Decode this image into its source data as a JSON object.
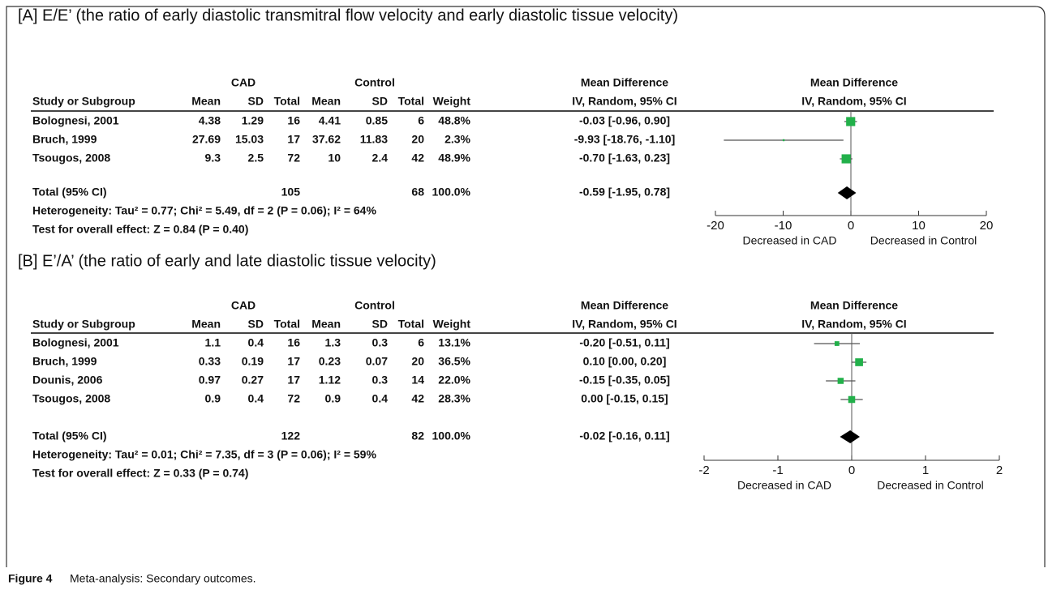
{
  "panels": [
    {
      "type": "forest",
      "title": "[A] E/E’ (the ratio of early diastolic transmitral flow velocity and early diastolic tissue velocity)",
      "group_headers": [
        "CAD",
        "Control",
        "Mean Difference",
        "Mean Difference"
      ],
      "columns": [
        "Study or Subgroup",
        "Mean",
        "SD",
        "Total",
        "Mean",
        "SD",
        "Total",
        "Weight",
        "IV, Random, 95% CI",
        "IV, Random, 95% CI"
      ],
      "studies": [
        {
          "name": "Bolognesi, 2001",
          "cad_mean": 4.38,
          "cad_sd": 1.29,
          "cad_total": 16,
          "ctrl_mean": 4.41,
          "ctrl_sd": 0.85,
          "ctrl_total": 6,
          "weight": 48.8,
          "weight_label": "48.8%",
          "md": -0.03,
          "lo": -0.96,
          "hi": 0.9,
          "ci_label": "-0.03 [-0.96, 0.90]"
        },
        {
          "name": "Bruch, 1999",
          "cad_mean": 27.69,
          "cad_sd": 15.03,
          "cad_total": 17,
          "ctrl_mean": 37.62,
          "ctrl_sd": 11.83,
          "ctrl_total": 20,
          "weight": 2.3,
          "weight_label": "2.3%",
          "md": -9.93,
          "lo": -18.76,
          "hi": -1.1,
          "ci_label": "-9.93 [-18.76, -1.10]"
        },
        {
          "name": "Tsougos, 2008",
          "cad_mean": 9.3,
          "cad_sd": 2.5,
          "cad_total": 72,
          "ctrl_mean": 10,
          "ctrl_sd": 2.4,
          "ctrl_total": 42,
          "weight": 48.9,
          "weight_label": "48.9%",
          "md": -0.7,
          "lo": -1.63,
          "hi": 0.23,
          "ci_label": "-0.70 [-1.63, 0.23]"
        }
      ],
      "total": {
        "name": "Total (95% CI)",
        "cad_total": 105,
        "ctrl_total": 68,
        "weight_label": "100.0%",
        "md": -0.59,
        "lo": -1.95,
        "hi": 0.78,
        "ci_label": "-0.59 [-1.95, 0.78]"
      },
      "heterogeneity": "Heterogeneity: Tau² = 0.77; Chi² = 5.49, df = 2 (P = 0.06); I² = 64%",
      "overall_effect": "Test for overall effect: Z = 0.84 (P = 0.40)",
      "xlim": [
        -20,
        20
      ],
      "xticks": [
        -20,
        -10,
        0,
        10,
        20
      ],
      "xlabel_left": "Decreased in CAD",
      "xlabel_right": "Decreased in Control",
      "color": "#22b04a"
    },
    {
      "type": "forest",
      "title": "[B] E’/A’ (the ratio of early and late diastolic tissue velocity)",
      "group_headers": [
        "CAD",
        "Control",
        "Mean Difference",
        "Mean Difference"
      ],
      "columns": [
        "Study or Subgroup",
        "Mean",
        "SD",
        "Total",
        "Mean",
        "SD",
        "Total",
        "Weight",
        "IV, Random, 95% CI",
        "IV, Random, 95% CI"
      ],
      "studies": [
        {
          "name": "Bolognesi, 2001",
          "cad_mean": 1.1,
          "cad_sd": 0.4,
          "cad_total": 16,
          "ctrl_mean": 1.3,
          "ctrl_sd": 0.3,
          "ctrl_total": 6,
          "weight": 13.1,
          "weight_label": "13.1%",
          "md": -0.2,
          "lo": -0.51,
          "hi": 0.11,
          "ci_label": "-0.20 [-0.51, 0.11]"
        },
        {
          "name": "Bruch, 1999",
          "cad_mean": 0.33,
          "cad_sd": 0.19,
          "cad_total": 17,
          "ctrl_mean": 0.23,
          "ctrl_sd": 0.07,
          "ctrl_total": 20,
          "weight": 36.5,
          "weight_label": "36.5%",
          "md": 0.1,
          "lo": 0.0,
          "hi": 0.2,
          "ci_label": "0.10 [0.00, 0.20]"
        },
        {
          "name": "Dounis, 2006",
          "cad_mean": 0.97,
          "cad_sd": 0.27,
          "cad_total": 17,
          "ctrl_mean": 1.12,
          "ctrl_sd": 0.3,
          "ctrl_total": 14,
          "weight": 22.0,
          "weight_label": "22.0%",
          "md": -0.15,
          "lo": -0.35,
          "hi": 0.05,
          "ci_label": "-0.15 [-0.35, 0.05]"
        },
        {
          "name": "Tsougos, 2008",
          "cad_mean": 0.9,
          "cad_sd": 0.4,
          "cad_total": 72,
          "ctrl_mean": 0.9,
          "ctrl_sd": 0.4,
          "ctrl_total": 42,
          "weight": 28.3,
          "weight_label": "28.3%",
          "md": 0.0,
          "lo": -0.15,
          "hi": 0.15,
          "ci_label": "0.00 [-0.15, 0.15]"
        }
      ],
      "total": {
        "name": "Total (95% CI)",
        "cad_total": 122,
        "ctrl_total": 82,
        "weight_label": "100.0%",
        "md": -0.02,
        "lo": -0.16,
        "hi": 0.11,
        "ci_label": "-0.02 [-0.16, 0.11]"
      },
      "heterogeneity": "Heterogeneity: Tau² = 0.01; Chi² = 7.35, df = 3 (P = 0.06); I² = 59%",
      "overall_effect": "Test for overall effect: Z = 0.33 (P = 0.74)",
      "xlim": [
        -2,
        2
      ],
      "xticks": [
        -2,
        -1,
        0,
        1,
        2
      ],
      "xlabel_left": "Decreased in CAD",
      "xlabel_right": "Decreased in Control",
      "color": "#22b04a"
    }
  ],
  "caption": {
    "label": "Figure 4",
    "text": "Meta-analysis: Secondary outcomes."
  }
}
